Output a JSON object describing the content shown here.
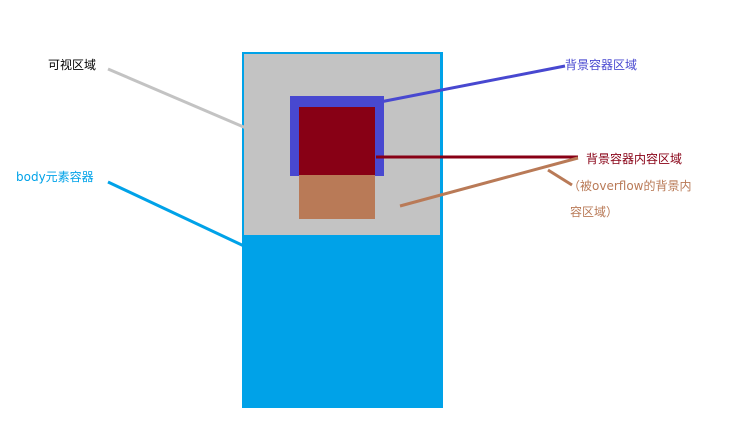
{
  "labels": {
    "viewport": "可视区域",
    "body_container": "body元素容器",
    "bg_container": "背景容器区域",
    "bg_content": "背景容器内容区域",
    "overflow_line1": "（被overflow的背景内",
    "overflow_line2": "容区域）"
  },
  "colors": {
    "body_blue": "#00a2e8",
    "viewport_gray": "#c3c3c3",
    "bg_container_blue": "#4848d0",
    "content_red": "#880015",
    "overflow_brown": "#b97a57",
    "viewport_line": "#c3c3c3",
    "black_text": "#000000"
  }
}
